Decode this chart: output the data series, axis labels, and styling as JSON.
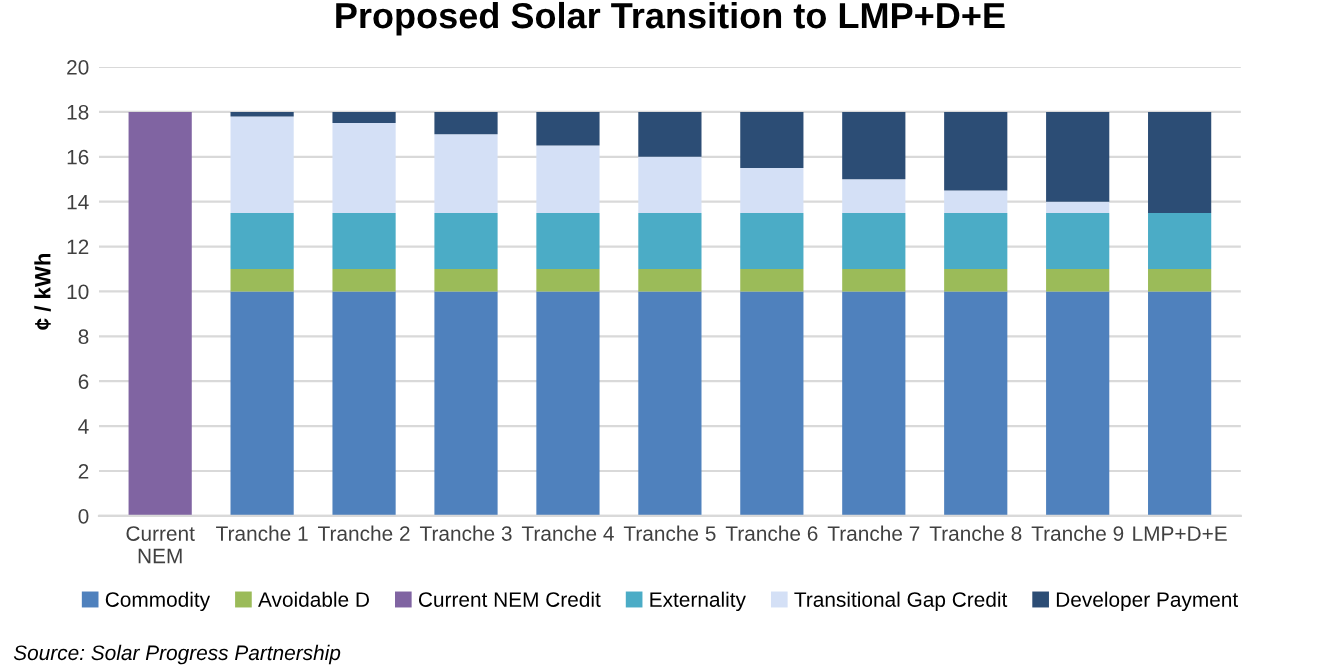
{
  "chart_data": {
    "type": "bar",
    "stacked": true,
    "title": "Proposed Solar Transition to LMP+D+E",
    "ylabel": "¢ / kWh",
    "categories": [
      "Current\nNEM",
      "Tranche 1",
      "Tranche 2",
      "Tranche 3",
      "Tranche 4",
      "Tranche 5",
      "Tranche 6",
      "Tranche 7",
      "Tranche 8",
      "Tranche 9",
      "LMP+D+E"
    ],
    "series": [
      {
        "name": "Commodity",
        "color": "#4f81bd",
        "values": [
          null,
          10,
          10,
          10,
          10,
          10,
          10,
          10,
          10,
          10,
          10
        ]
      },
      {
        "name": "Avoidable D",
        "color": "#9bbb59",
        "values": [
          null,
          1,
          1,
          1,
          1,
          1,
          1,
          1,
          1,
          1,
          1
        ]
      },
      {
        "name": "Current NEM Credit",
        "color": "#8064a2",
        "values": [
          18,
          null,
          null,
          null,
          null,
          null,
          null,
          null,
          null,
          null,
          null
        ]
      },
      {
        "name": "Externality",
        "color": "#4bacc6",
        "values": [
          null,
          2.5,
          2.5,
          2.5,
          2.5,
          2.5,
          2.5,
          2.5,
          2.5,
          2.5,
          2.5
        ]
      },
      {
        "name": "Transitional Gap Credit",
        "color": "#d4e0f6",
        "values": [
          null,
          4.3,
          4,
          3.5,
          3,
          2.5,
          2,
          1.5,
          1,
          0.5,
          null
        ]
      },
      {
        "name": "Developer Payment",
        "color": "#2c4d75",
        "values": [
          null,
          0.2,
          0.5,
          1,
          1.5,
          2,
          2.5,
          3,
          3.5,
          4,
          4.5
        ]
      }
    ],
    "ylim": [
      0,
      20
    ],
    "yticks": [
      0,
      2,
      4,
      6,
      8,
      10,
      12,
      14,
      16,
      18,
      20
    ],
    "grid": "y",
    "legend": "bottom",
    "annotations": [
      "Source: Solar Progress Partnership"
    ]
  }
}
